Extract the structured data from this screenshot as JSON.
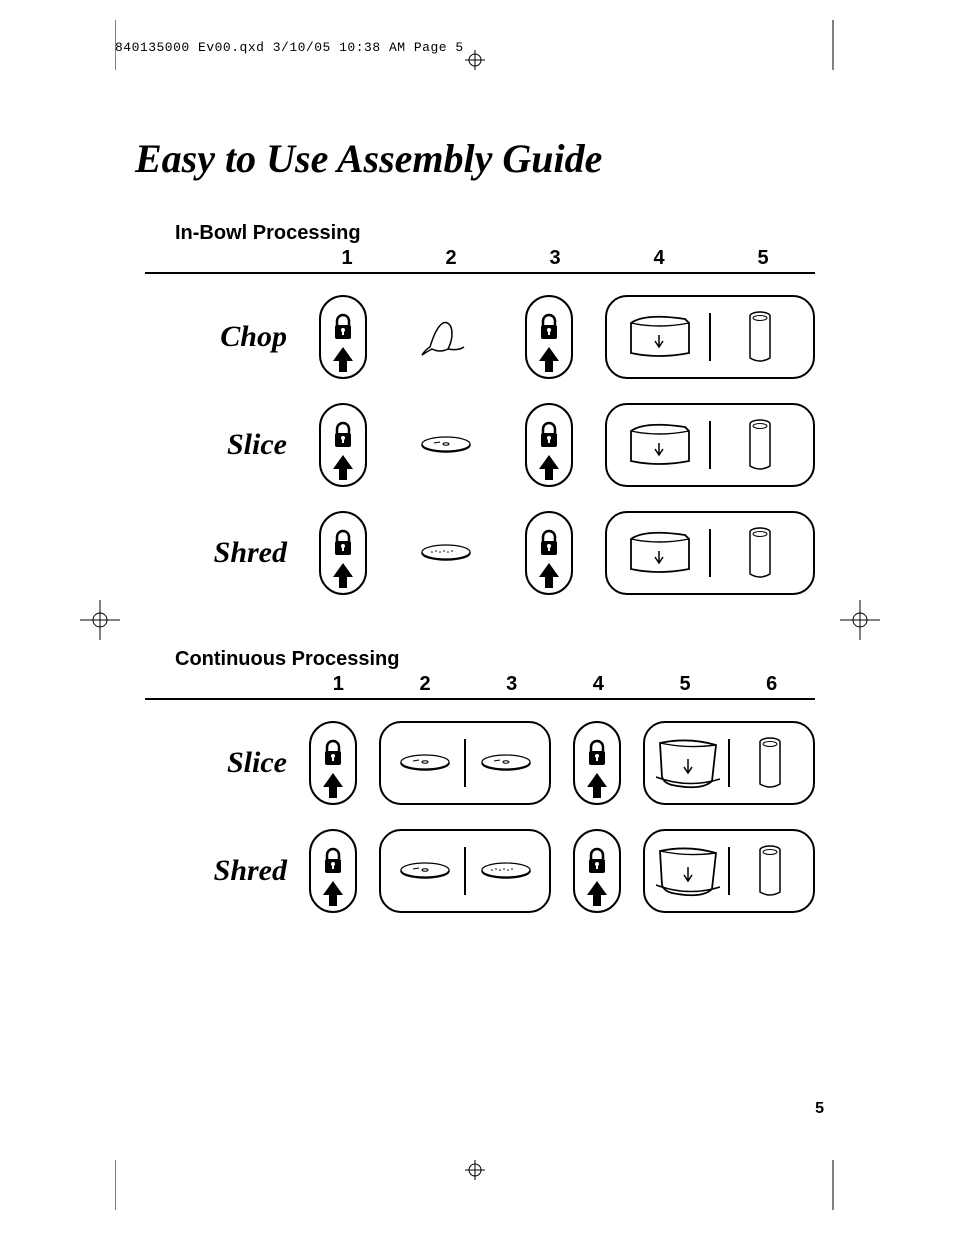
{
  "meta_header": "840135000 Ev00.qxd  3/10/05  10:38 AM  Page 5",
  "title": "Easy to Use Assembly Guide",
  "page_number": "5",
  "colors": {
    "text": "#000000",
    "background": "#ffffff",
    "rule": "#000000"
  },
  "typography": {
    "title_fontsize": 40,
    "title_style": "italic bold serif",
    "section_head_fontsize": 20,
    "section_head_family": "sans-serif bold",
    "row_label_fontsize": 30,
    "row_label_style": "italic bold serif",
    "number_fontsize": 20,
    "meta_family": "monospace"
  },
  "sections": [
    {
      "heading": "In-Bowl Processing",
      "columns": [
        "1",
        "2",
        "3",
        "4",
        "5"
      ],
      "rows": [
        {
          "label": "Chop",
          "cells": [
            {
              "type": "lockpill"
            },
            {
              "type": "icon",
              "icon": "blade-cone"
            },
            {
              "type": "lockpill"
            },
            {
              "type": "group-lid-pusher",
              "span": 2
            }
          ]
        },
        {
          "label": "Slice",
          "cells": [
            {
              "type": "lockpill"
            },
            {
              "type": "icon",
              "icon": "disc-slice"
            },
            {
              "type": "lockpill"
            },
            {
              "type": "group-lid-pusher",
              "span": 2
            }
          ]
        },
        {
          "label": "Shred",
          "cells": [
            {
              "type": "lockpill"
            },
            {
              "type": "icon",
              "icon": "disc-shred"
            },
            {
              "type": "lockpill"
            },
            {
              "type": "group-lid-pusher",
              "span": 2
            }
          ]
        }
      ]
    },
    {
      "heading": "Continuous Processing",
      "columns": [
        "1",
        "2",
        "3",
        "4",
        "5",
        "6"
      ],
      "rows": [
        {
          "label": "Slice",
          "cells": [
            {
              "type": "lockpill"
            },
            {
              "type": "group-discs",
              "span": 2,
              "icons": [
                "disc-slice",
                "disc-slice"
              ]
            },
            {
              "type": "lockpill"
            },
            {
              "type": "group-chute-pusher",
              "span": 2
            }
          ]
        },
        {
          "label": "Shred",
          "cells": [
            {
              "type": "lockpill"
            },
            {
              "type": "group-discs",
              "span": 2,
              "icons": [
                "disc-slice",
                "disc-shred"
              ]
            },
            {
              "type": "lockpill"
            },
            {
              "type": "group-chute-pusher",
              "span": 2
            }
          ]
        }
      ]
    }
  ]
}
